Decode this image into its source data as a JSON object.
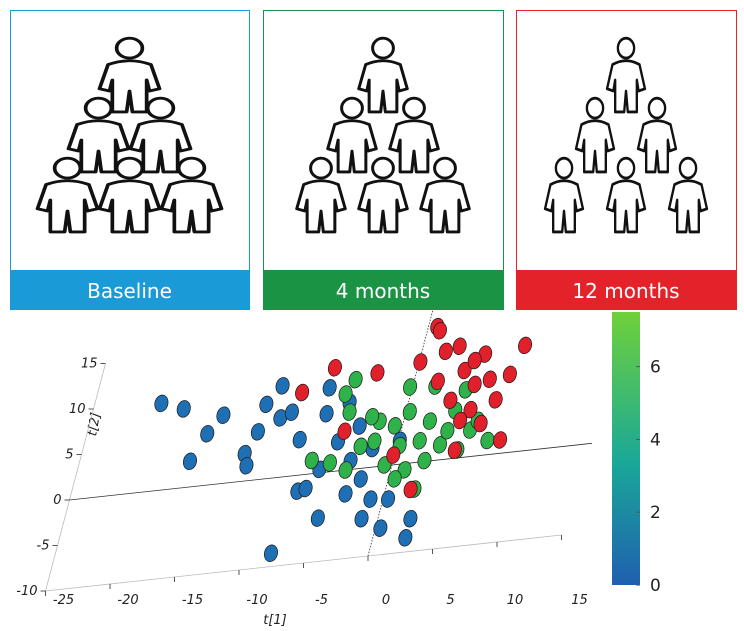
{
  "panels": [
    {
      "label": "Baseline",
      "color": "#1a9ad6"
    },
    {
      "label": "4 months",
      "color": "#1a9444"
    },
    {
      "label": "12 months",
      "color": "#e3222a"
    }
  ],
  "chart_data": {
    "type": "scatter3d",
    "xlabel": "t[1]",
    "ylabel": "t[2]",
    "xlim": [
      -25,
      15
    ],
    "ylim": [
      -10,
      15
    ],
    "xticks": [
      -25,
      -20,
      -15,
      -10,
      -5,
      0,
      5,
      10,
      15
    ],
    "yticks": [
      -10,
      -5,
      0,
      5,
      10,
      15
    ],
    "colorbar_lim": [
      0,
      7.5
    ],
    "colorbar_ticks": [
      0,
      2,
      4,
      6
    ],
    "series": [
      {
        "color": "#1f6fb5",
        "x": [
          -19.7,
          -17.8,
          -15.4,
          -14.5,
          -16.2,
          -12,
          -11.6,
          -11.4,
          -11.3,
          -9.9,
          -10.4,
          -9.1,
          -7.9,
          -7,
          -6.4,
          -4.8,
          -7.8,
          -6.3,
          -6.6,
          -4.8,
          -3.4,
          -2.2,
          -1.3,
          -1,
          0.4,
          2.6,
          2.6,
          -4.7,
          -3.4,
          -1.9,
          -5.7,
          -3.1,
          0.4,
          0.1
        ],
        "values": [
          9.8,
          8.9,
          5.8,
          7.7,
          2.9,
          3.1,
          1.7,
          5.4,
          8.4,
          6.7,
          10.3,
          7.2,
          4,
          -1.8,
          -1.6,
          -5.1,
          -8.5,
          6.6,
          9.5,
          3.3,
          1,
          -1.2,
          -5.7,
          -3.6,
          -7,
          -8.4,
          -6.3,
          7.6,
          4.8,
          2.1,
          0.4,
          -2.7,
          -3.8,
          2.7
        ]
      },
      {
        "color": "#2fb24a",
        "x": [
          -6.5,
          -5,
          -5.2,
          -4.5,
          -4.7,
          -3.6,
          -2.9,
          -1.9,
          -1.9,
          -0.6,
          -0.6,
          0.2,
          1.1,
          0.3,
          2.3,
          1.7,
          2.5,
          2.1,
          1.8,
          3.4,
          3.7,
          3.9,
          4.9,
          4.3,
          5.5,
          5.9,
          7.1,
          0.5,
          -2.6,
          -0.2
        ],
        "values": [
          1.5,
          1,
          8.6,
          6.5,
          10.1,
          0,
          2.5,
          2.9,
          5.1,
          0.1,
          4.4,
          2.1,
          -0.7,
          5.8,
          -3,
          2.4,
          0.1,
          4.5,
          8.4,
          1.7,
          3.2,
          5.4,
          0.9,
          7.6,
          3,
          4,
          1.6,
          -1.6,
          5.7,
          8.6
        ]
      },
      {
        "color": "#e0202a",
        "x": [
          -8.7,
          -6.6,
          -4.5,
          -3.1,
          -0.1,
          2,
          0.1,
          0.7,
          1.9,
          1.9,
          3.3,
          2.9,
          3.8,
          5.1,
          4.9,
          6.2,
          5.1,
          6,
          6.9,
          8.1,
          7.5,
          8.1,
          4.7,
          1,
          4.4,
          4.5
        ],
        "values": [
          9.3,
          11.7,
          4.4,
          10.6,
          1.1,
          -3,
          11.3,
          15.1,
          8.9,
          12.2,
          6.6,
          12.6,
          9.8,
          5.3,
          8.1,
          3.6,
          11.4,
          8.5,
          6.1,
          1.5,
          8.8,
          11.9,
          0.9,
          14.6,
          10.8,
          4.2
        ]
      }
    ]
  }
}
